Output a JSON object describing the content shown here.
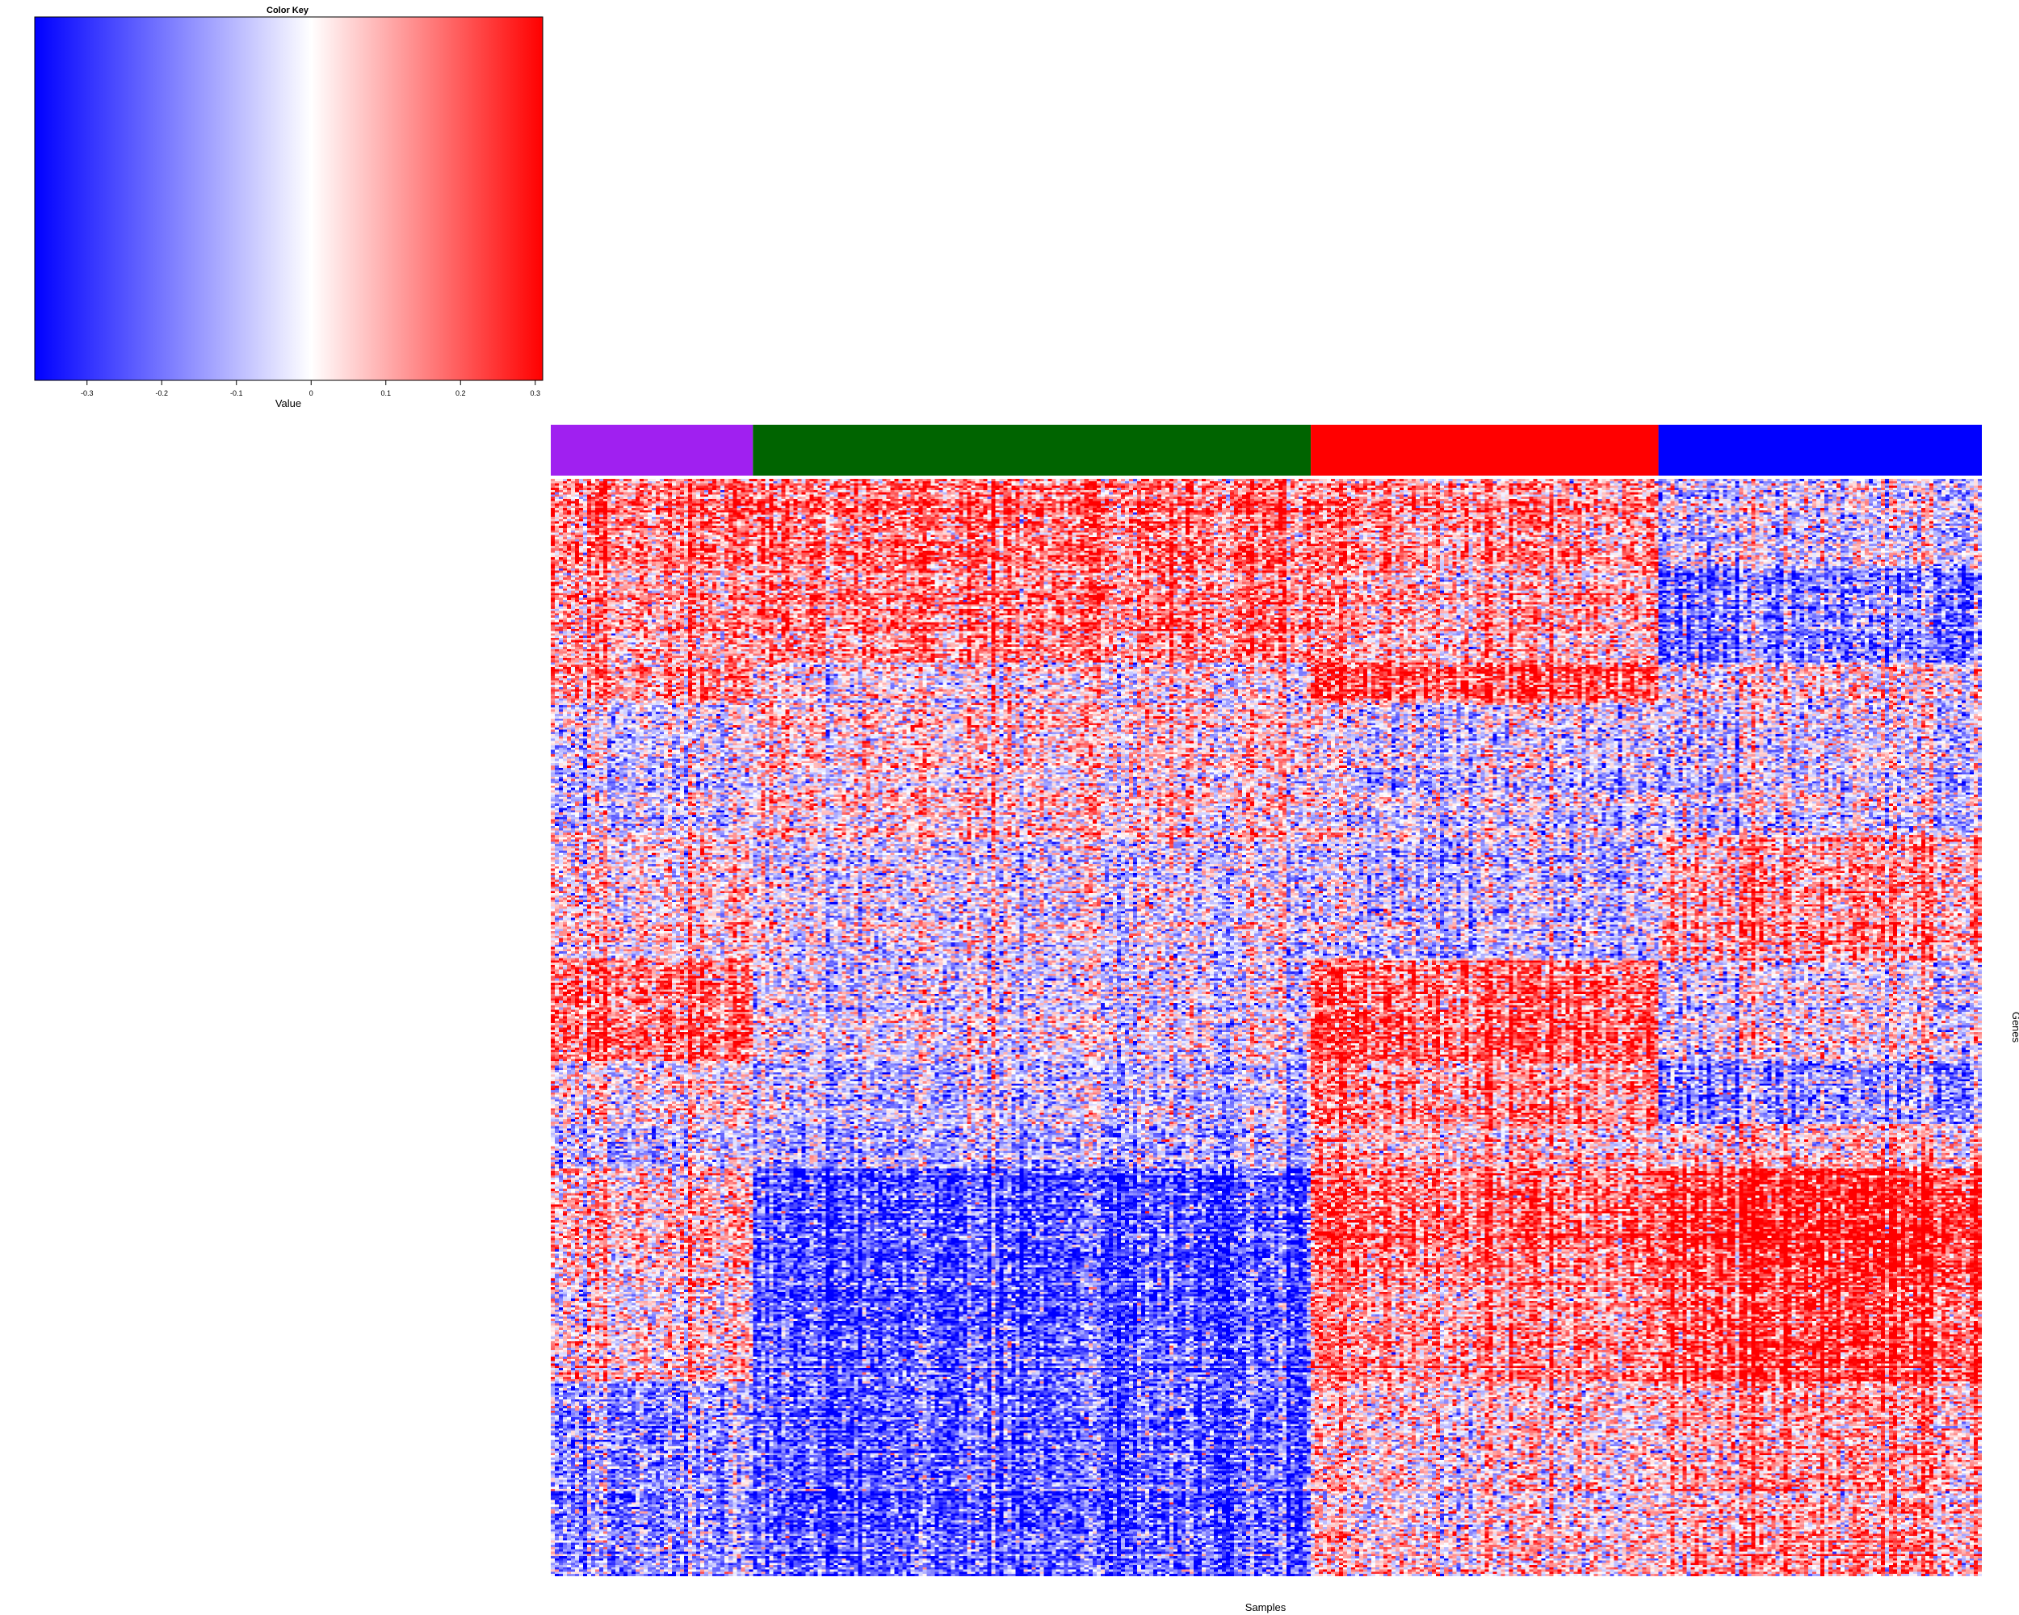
{
  "chart_data": [
    {
      "type": "colorbar",
      "title": "Color Key",
      "xlabel": "Value",
      "range": [
        -0.37,
        0.31
      ],
      "ticks": [
        -0.3,
        -0.2,
        -0.1,
        0,
        0.1,
        0.2,
        0.3
      ],
      "tick_labels": [
        "-0.3",
        "-0.2",
        "-0.1",
        "0",
        "0.1",
        "0.2",
        "0.3"
      ],
      "colors": {
        "low": "#0000ff",
        "mid": "#ffffff",
        "high": "#ff0000"
      },
      "mid_value": 0
    },
    {
      "type": "heatmap",
      "xlabel": "Samples",
      "ylabel": "Genes",
      "value_range": [
        -0.37,
        0.31
      ],
      "groups": [
        {
          "color": "#a020f0",
          "n_samples": 50
        },
        {
          "color": "#006400",
          "n_samples": 138
        },
        {
          "color": "#ff0000",
          "n_samples": 86
        },
        {
          "color": "#0000ff",
          "n_samples": 80
        }
      ],
      "gene_blocks": [
        {
          "genes": 40,
          "mean_values": [
            0.18,
            0.2,
            0.15,
            -0.04
          ]
        },
        {
          "genes": 42,
          "mean_values": [
            0.1,
            0.15,
            0.08,
            -0.2
          ]
        },
        {
          "genes": 18,
          "mean_values": [
            0.12,
            0.02,
            0.22,
            0.0
          ]
        },
        {
          "genes": 60,
          "mean_values": [
            -0.06,
            0.05,
            -0.05,
            -0.06
          ]
        },
        {
          "genes": 55,
          "mean_values": [
            0.02,
            -0.03,
            -0.08,
            0.1
          ]
        },
        {
          "genes": 45,
          "mean_values": [
            0.17,
            -0.02,
            0.2,
            -0.03
          ]
        },
        {
          "genes": 28,
          "mean_values": [
            0.02,
            -0.05,
            0.15,
            -0.14
          ]
        },
        {
          "genes": 20,
          "mean_values": [
            -0.1,
            -0.12,
            0.05,
            0.02
          ]
        },
        {
          "genes": 45,
          "mean_values": [
            0.06,
            -0.25,
            0.18,
            0.27
          ]
        },
        {
          "genes": 50,
          "mean_values": [
            0.04,
            -0.22,
            0.14,
            0.24
          ]
        },
        {
          "genes": 87,
          "mean_values": [
            -0.15,
            -0.22,
            0.04,
            0.1
          ]
        }
      ]
    }
  ],
  "colorkey": {
    "title": "Color Key",
    "xlabel": "Value"
  },
  "heatmap": {
    "xlabel": "Samples",
    "ylabel": "Genes"
  }
}
